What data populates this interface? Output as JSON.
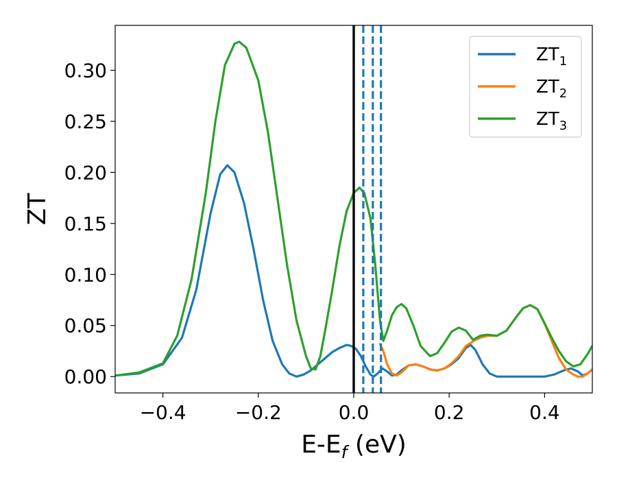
{
  "chart_data": {
    "type": "line",
    "xlabel": "E-E_f (eV)",
    "ylabel": "ZT",
    "xlim": [
      -0.5,
      0.5
    ],
    "ylim": [
      -0.016,
      0.344
    ],
    "xticks": [
      -0.4,
      -0.2,
      0.0,
      0.2,
      0.4
    ],
    "xtick_labels": [
      "−0.4",
      "−0.2",
      "0.0",
      "0.2",
      "0.4"
    ],
    "yticks": [
      0.0,
      0.05,
      0.1,
      0.15,
      0.2,
      0.25,
      0.3
    ],
    "ytick_labels": [
      "0.00",
      "0.05",
      "0.10",
      "0.15",
      "0.20",
      "0.25",
      "0.30"
    ],
    "grid": false,
    "legend_position": "top-right",
    "vertical_lines": [
      {
        "x": 0.0,
        "style": "solid",
        "color": "#000000"
      },
      {
        "x": 0.02,
        "style": "dashed",
        "color": "#1f77b4"
      },
      {
        "x": 0.04,
        "style": "dashed",
        "color": "#1f77b4"
      },
      {
        "x": 0.057,
        "style": "dashed",
        "color": "#1f77b4"
      }
    ],
    "series": [
      {
        "name": "ZT_1",
        "legend_main": "ZT",
        "legend_sub": "1",
        "color": "#1f77b4",
        "points": [
          [
            -0.5,
            0.001
          ],
          [
            -0.45,
            0.003
          ],
          [
            -0.4,
            0.012
          ],
          [
            -0.36,
            0.038
          ],
          [
            -0.33,
            0.085
          ],
          [
            -0.3,
            0.16
          ],
          [
            -0.28,
            0.198
          ],
          [
            -0.265,
            0.207
          ],
          [
            -0.25,
            0.2
          ],
          [
            -0.23,
            0.17
          ],
          [
            -0.21,
            0.125
          ],
          [
            -0.19,
            0.075
          ],
          [
            -0.17,
            0.035
          ],
          [
            -0.15,
            0.012
          ],
          [
            -0.135,
            0.003
          ],
          [
            -0.12,
            0.0
          ],
          [
            -0.105,
            0.002
          ],
          [
            -0.09,
            0.006
          ],
          [
            -0.075,
            0.012
          ],
          [
            -0.06,
            0.018
          ],
          [
            -0.045,
            0.024
          ],
          [
            -0.03,
            0.028
          ],
          [
            -0.015,
            0.031
          ],
          [
            -0.005,
            0.03
          ],
          [
            0.005,
            0.027
          ],
          [
            0.015,
            0.02
          ],
          [
            0.025,
            0.01
          ],
          [
            0.035,
            0.002
          ],
          [
            0.042,
            0.0
          ],
          [
            0.05,
            0.003
          ],
          [
            0.06,
            0.008
          ],
          [
            0.07,
            0.005
          ],
          [
            0.08,
            0.001
          ],
          [
            0.09,
            0.002
          ],
          [
            0.1,
            0.006
          ],
          [
            0.115,
            0.011
          ],
          [
            0.13,
            0.012
          ],
          [
            0.145,
            0.01
          ],
          [
            0.16,
            0.007
          ],
          [
            0.175,
            0.006
          ],
          [
            0.19,
            0.008
          ],
          [
            0.205,
            0.012
          ],
          [
            0.22,
            0.018
          ],
          [
            0.235,
            0.028
          ],
          [
            0.245,
            0.031
          ],
          [
            0.255,
            0.026
          ],
          [
            0.27,
            0.012
          ],
          [
            0.285,
            0.003
          ],
          [
            0.3,
            0.0
          ],
          [
            0.35,
            0.0
          ],
          [
            0.4,
            0.0
          ],
          [
            0.42,
            0.002
          ],
          [
            0.44,
            0.006
          ],
          [
            0.455,
            0.008
          ],
          [
            0.47,
            0.005
          ],
          [
            0.48,
            0.001
          ],
          [
            0.49,
            0.003
          ],
          [
            0.5,
            0.007
          ]
        ]
      },
      {
        "name": "ZT_2",
        "legend_main": "ZT",
        "legend_sub": "2",
        "color": "#ff7f0e",
        "points": [
          [
            0.055,
            0.032
          ],
          [
            0.062,
            0.025
          ],
          [
            0.07,
            0.012
          ],
          [
            0.08,
            0.003
          ],
          [
            0.09,
            0.001
          ],
          [
            0.1,
            0.004
          ],
          [
            0.115,
            0.011
          ],
          [
            0.13,
            0.012
          ],
          [
            0.145,
            0.01
          ],
          [
            0.16,
            0.007
          ],
          [
            0.175,
            0.006
          ],
          [
            0.19,
            0.008
          ],
          [
            0.205,
            0.013
          ],
          [
            0.22,
            0.02
          ],
          [
            0.235,
            0.03
          ],
          [
            0.245,
            0.033
          ],
          [
            0.255,
            0.036
          ],
          [
            0.265,
            0.038
          ],
          [
            0.28,
            0.04
          ],
          [
            0.3,
            0.04
          ],
          [
            0.32,
            0.045
          ],
          [
            0.34,
            0.058
          ],
          [
            0.355,
            0.067
          ],
          [
            0.37,
            0.07
          ],
          [
            0.385,
            0.066
          ],
          [
            0.4,
            0.052
          ],
          [
            0.415,
            0.035
          ],
          [
            0.43,
            0.018
          ],
          [
            0.445,
            0.007
          ],
          [
            0.46,
            0.002
          ],
          [
            0.47,
            0.0
          ],
          [
            0.48,
            0.0
          ],
          [
            0.49,
            0.003
          ],
          [
            0.5,
            0.007
          ]
        ]
      },
      {
        "name": "ZT_3",
        "legend_main": "ZT",
        "legend_sub": "3",
        "color": "#2ca02c",
        "points": [
          [
            -0.5,
            0.001
          ],
          [
            -0.45,
            0.004
          ],
          [
            -0.4,
            0.013
          ],
          [
            -0.37,
            0.04
          ],
          [
            -0.34,
            0.095
          ],
          [
            -0.31,
            0.18
          ],
          [
            -0.29,
            0.25
          ],
          [
            -0.27,
            0.305
          ],
          [
            -0.25,
            0.326
          ],
          [
            -0.24,
            0.328
          ],
          [
            -0.225,
            0.322
          ],
          [
            -0.2,
            0.29
          ],
          [
            -0.18,
            0.24
          ],
          [
            -0.16,
            0.175
          ],
          [
            -0.14,
            0.11
          ],
          [
            -0.12,
            0.055
          ],
          [
            -0.1,
            0.02
          ],
          [
            -0.09,
            0.008
          ],
          [
            -0.08,
            0.007
          ],
          [
            -0.07,
            0.02
          ],
          [
            -0.06,
            0.045
          ],
          [
            -0.045,
            0.085
          ],
          [
            -0.03,
            0.128
          ],
          [
            -0.015,
            0.162
          ],
          [
            0.0,
            0.18
          ],
          [
            0.012,
            0.185
          ],
          [
            0.022,
            0.18
          ],
          [
            0.035,
            0.155
          ],
          [
            0.045,
            0.11
          ],
          [
            0.055,
            0.055
          ],
          [
            0.062,
            0.035
          ],
          [
            0.07,
            0.045
          ],
          [
            0.08,
            0.06
          ],
          [
            0.09,
            0.068
          ],
          [
            0.1,
            0.071
          ],
          [
            0.11,
            0.067
          ],
          [
            0.125,
            0.05
          ],
          [
            0.14,
            0.03
          ],
          [
            0.16,
            0.02
          ],
          [
            0.175,
            0.023
          ],
          [
            0.19,
            0.033
          ],
          [
            0.205,
            0.044
          ],
          [
            0.22,
            0.048
          ],
          [
            0.235,
            0.045
          ],
          [
            0.25,
            0.036
          ],
          [
            0.265,
            0.04
          ],
          [
            0.28,
            0.041
          ],
          [
            0.3,
            0.04
          ],
          [
            0.32,
            0.045
          ],
          [
            0.34,
            0.058
          ],
          [
            0.355,
            0.067
          ],
          [
            0.37,
            0.07
          ],
          [
            0.385,
            0.066
          ],
          [
            0.4,
            0.052
          ],
          [
            0.415,
            0.038
          ],
          [
            0.43,
            0.025
          ],
          [
            0.445,
            0.015
          ],
          [
            0.46,
            0.01
          ],
          [
            0.475,
            0.012
          ],
          [
            0.49,
            0.022
          ],
          [
            0.5,
            0.03
          ]
        ]
      }
    ]
  }
}
